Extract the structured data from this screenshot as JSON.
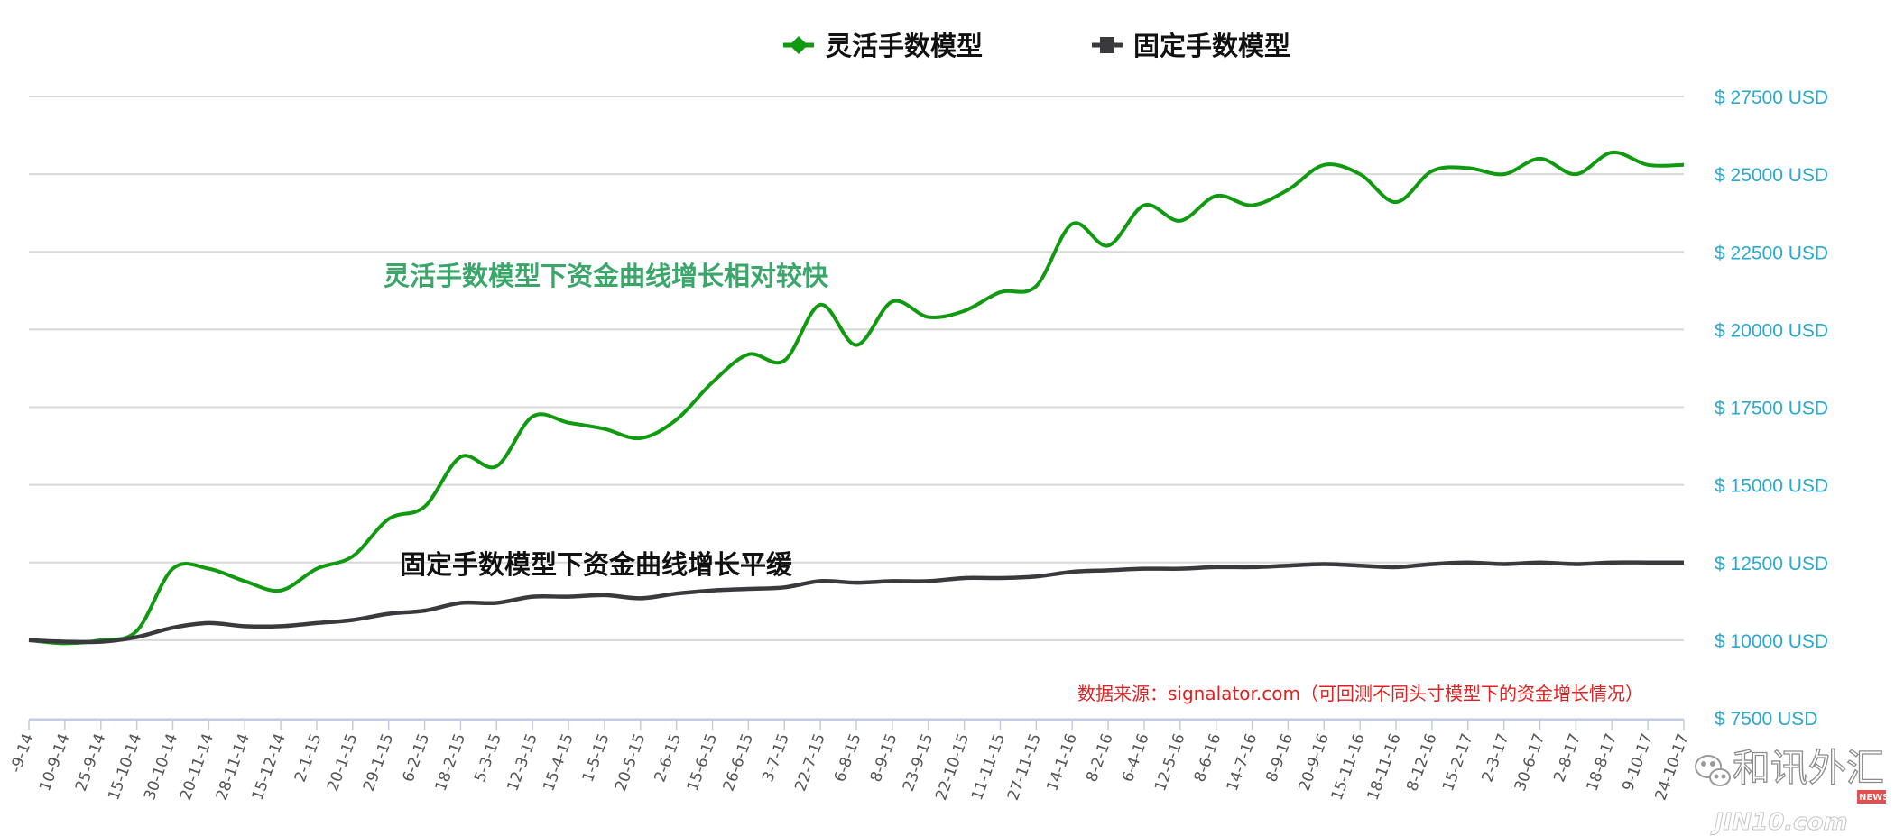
{
  "chart_data": {
    "type": "line",
    "title": "",
    "xlabel": "",
    "ylabel": "",
    "ylim": [
      7500,
      27500
    ],
    "yticks": [
      7500,
      10000,
      12500,
      15000,
      17500,
      20000,
      22500,
      25000,
      27500
    ],
    "ytick_format": "$ {v} USD",
    "grid": true,
    "legend_placement": "top-center",
    "categories": [
      "-9-14",
      "10-9-14",
      "25-9-14",
      "15-10-14",
      "30-10-14",
      "20-11-14",
      "28-11-14",
      "15-12-14",
      "2-1-15",
      "20-1-15",
      "29-1-15",
      "6-2-15",
      "18-2-15",
      "5-3-15",
      "12-3-15",
      "15-4-15",
      "1-5-15",
      "20-5-15",
      "2-6-15",
      "15-6-15",
      "26-6-15",
      "3-7-15",
      "22-7-15",
      "6-8-15",
      "8-9-15",
      "23-9-15",
      "22-10-15",
      "11-11-15",
      "27-11-15",
      "14-1-16",
      "8-2-16",
      "6-4-16",
      "12-5-16",
      "8-6-16",
      "14-7-16",
      "8-9-16",
      "20-9-16",
      "15-11-16",
      "18-11-16",
      "8-12-16",
      "15-2-17",
      "2-3-17",
      "30-6-17",
      "2-8-17",
      "18-8-17",
      "9-10-17",
      "24-10-17"
    ],
    "series": [
      {
        "name": "灵活手数模型",
        "color": "#109a10",
        "marker": "diamond",
        "values": [
          10000,
          9900,
          10000,
          10300,
          12300,
          12300,
          11900,
          11600,
          12300,
          12700,
          13900,
          14300,
          15900,
          15600,
          17200,
          17000,
          16800,
          16500,
          17100,
          18300,
          19200,
          19000,
          20800,
          19500,
          20900,
          20400,
          20600,
          21200,
          21400,
          23400,
          22700,
          24000,
          23500,
          24300,
          24000,
          24500,
          25300,
          25000,
          24100,
          25100,
          25200,
          25000,
          25500,
          25000,
          25700,
          25300,
          25300
        ]
      },
      {
        "name": "固定手数模型",
        "color": "#3a3a3e",
        "marker": "square",
        "values": [
          10000,
          9950,
          9950,
          10100,
          10400,
          10550,
          10450,
          10450,
          10550,
          10650,
          10850,
          10950,
          11200,
          11200,
          11400,
          11400,
          11450,
          11350,
          11500,
          11600,
          11650,
          11700,
          11900,
          11850,
          11900,
          11900,
          12000,
          12000,
          12050,
          12200,
          12250,
          12300,
          12300,
          12350,
          12350,
          12400,
          12450,
          12400,
          12350,
          12450,
          12500,
          12450,
          12500,
          12450,
          12500,
          12500,
          12500
        ]
      }
    ],
    "annotations": [
      {
        "text": "灵活手数模型下资金曲线增长相对较快",
        "color": "#3aa66a"
      },
      {
        "text": "固定手数模型下资金曲线增长平缓",
        "color": "#111111"
      }
    ],
    "source_note": "数据来源：signalator.com（可回测不同头寸模型下的资金增长情况）"
  },
  "watermark": {
    "brand": "和讯外汇",
    "site": "JIN10.com",
    "badge": "NEWS",
    "icon": "wechat-icon"
  }
}
